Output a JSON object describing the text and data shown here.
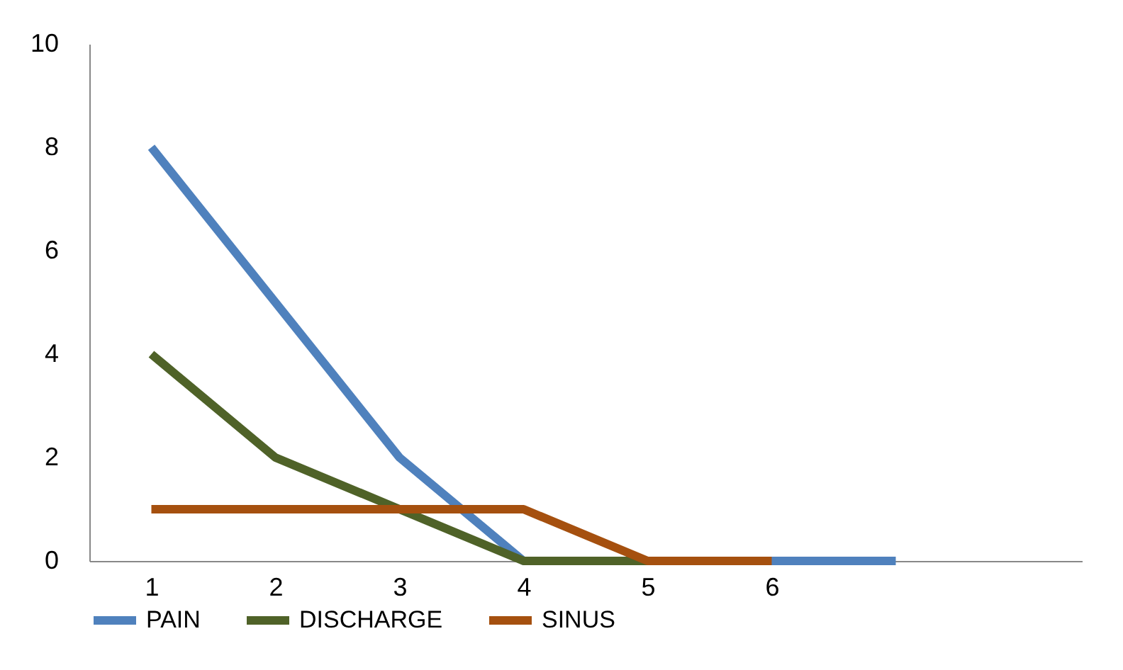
{
  "chart_data": {
    "type": "line",
    "categories": [
      "1",
      "2",
      "3",
      "4",
      "5",
      "6",
      null,
      null
    ],
    "series": [
      {
        "name": "PAIN",
        "color": "#4f81bd",
        "values": [
          8,
          5,
          2,
          0,
          0,
          0,
          0,
          null
        ]
      },
      {
        "name": "DISCHARGE",
        "color": "#4f6228",
        "values": [
          4,
          2,
          1,
          0,
          0,
          null,
          null,
          null
        ]
      },
      {
        "name": "SINUS",
        "color": "#a5500f",
        "values": [
          1,
          1,
          1,
          1,
          0,
          0,
          null,
          null
        ]
      }
    ],
    "ylim": [
      0,
      10
    ],
    "yticks": [
      0,
      2,
      4,
      6,
      8,
      10
    ],
    "grid": false,
    "legend": "bottom",
    "marker": "none",
    "line_style": "solid"
  }
}
